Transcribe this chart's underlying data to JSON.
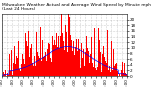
{
  "title_line1": "Milwaukee Weather Actual and Average Wind Speed by Minute mph (Last 24 Hours)",
  "title_line2": "Milwaukee",
  "bar_color": "#FF0000",
  "line_color": "#0000FF",
  "background_color": "#FFFFFF",
  "plot_bg_color": "#FFFFFF",
  "grid_color": "#AAAAAA",
  "ylim": [
    0,
    22
  ],
  "yticks": [
    0,
    2,
    4,
    6,
    8,
    10,
    12,
    14,
    16,
    18,
    20
  ],
  "n_points": 1440,
  "title_fontsize": 3.2,
  "tick_fontsize": 3.0,
  "bar_color_actual": "#FF0000",
  "line_color_avg": "#0000FF"
}
